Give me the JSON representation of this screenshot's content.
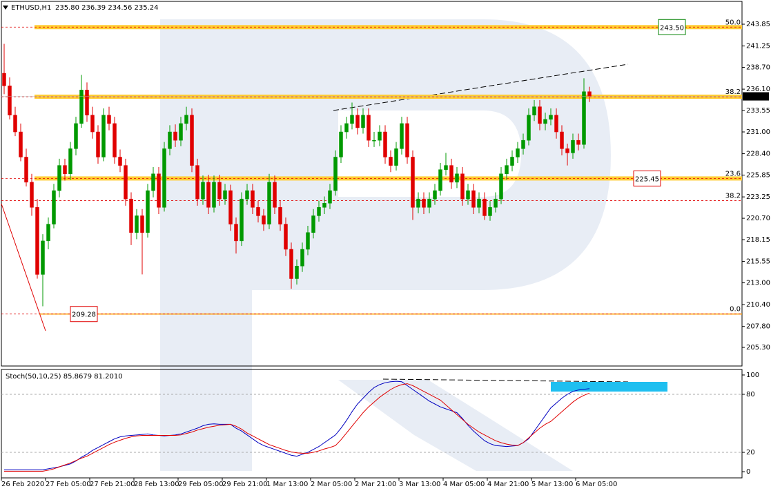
{
  "chart_data": [
    {
      "type": "candlestick",
      "symbol": "ETHUSD,H1",
      "quote": "235.80 236.39 234.56 235.24",
      "up_color": "#009900",
      "down_color": "#e00000",
      "categories": [
        "26 Feb 2020",
        null,
        null,
        null,
        null,
        null,
        null,
        null,
        "27 Feb 05:00",
        null,
        null,
        null,
        null,
        null,
        null,
        null,
        "27 Feb 21:00",
        null,
        null,
        null,
        null,
        null,
        null,
        null,
        "28 Feb 13:00",
        null,
        null,
        null,
        null,
        null,
        null,
        null,
        "29 Feb 05:00",
        null,
        null,
        null,
        null,
        null,
        null,
        null,
        "29 Feb 21:00",
        null,
        null,
        null,
        null,
        null,
        null,
        null,
        "1 Mar 13:00",
        null,
        null,
        null,
        null,
        null,
        null,
        null,
        "2 Mar 05:00",
        null,
        null,
        null,
        null,
        null,
        null,
        null,
        "2 Mar 21:00",
        null,
        null,
        null,
        null,
        null,
        null,
        null,
        "3 Mar 13:00",
        null,
        null,
        null,
        null,
        null,
        null,
        null,
        "4 Mar 05:00",
        null,
        null,
        null,
        null,
        null,
        null,
        null,
        "4 Mar 21:00",
        null,
        null,
        null,
        null,
        null,
        null,
        null,
        "5 Mar 13:00",
        null,
        null,
        null,
        null,
        null,
        null,
        null,
        "6 Mar 05:00",
        null,
        null
      ],
      "ohlc": [
        [
          238,
          241.5,
          235.5,
          236.5
        ],
        [
          236.5,
          237.5,
          232.5,
          233
        ],
        [
          233,
          234,
          230.5,
          231
        ],
        [
          231,
          232,
          227.5,
          228
        ],
        [
          228,
          229,
          224.5,
          225
        ],
        [
          225,
          226,
          221,
          222
        ],
        [
          222,
          223,
          213.5,
          214
        ],
        [
          214,
          218.8,
          210.2,
          218
        ],
        [
          218,
          220.8,
          217,
          220
        ],
        [
          220,
          224.8,
          219.5,
          224
        ],
        [
          224,
          227.8,
          223.2,
          227
        ],
        [
          227,
          227.8,
          225.2,
          226
        ],
        [
          226,
          229.8,
          225.3,
          229
        ],
        [
          229,
          232.8,
          228.2,
          232
        ],
        [
          232,
          237.8,
          231.5,
          236
        ],
        [
          236,
          236.9,
          232.2,
          233
        ],
        [
          233,
          234,
          230.2,
          231
        ],
        [
          231,
          231.8,
          227.2,
          228
        ],
        [
          228,
          233.8,
          227.5,
          233
        ],
        [
          233,
          234,
          231.2,
          232
        ],
        [
          232,
          232.8,
          227.2,
          228
        ],
        [
          228,
          228.9,
          226.2,
          227
        ],
        [
          227,
          227.8,
          222.2,
          223
        ],
        [
          223,
          223.8,
          217.5,
          219
        ],
        [
          219,
          221.8,
          218.2,
          221
        ],
        [
          221,
          221.8,
          214,
          219
        ],
        [
          219,
          224.8,
          218.4,
          224
        ],
        [
          224,
          226.8,
          223.2,
          226
        ],
        [
          226,
          226.8,
          221.2,
          222
        ],
        [
          222,
          229.8,
          221.5,
          229
        ],
        [
          229,
          231.8,
          228.2,
          231
        ],
        [
          231,
          231.9,
          229.2,
          230
        ],
        [
          230,
          232.8,
          229.3,
          232
        ],
        [
          232,
          234,
          231.2,
          233
        ],
        [
          233,
          233.8,
          226.2,
          227
        ],
        [
          227,
          227.8,
          222.2,
          223
        ],
        [
          223,
          225.8,
          222.3,
          225
        ],
        [
          225,
          225.9,
          221.2,
          222
        ],
        [
          222,
          225.8,
          221.4,
          225
        ],
        [
          225,
          225.9,
          222.2,
          223
        ],
        [
          223,
          224.8,
          222.3,
          224
        ],
        [
          224,
          224.7,
          219.2,
          220
        ],
        [
          220,
          220.8,
          216.5,
          218
        ],
        [
          218,
          223.8,
          217.4,
          223
        ],
        [
          223,
          224.8,
          222.3,
          224
        ],
        [
          224,
          224.8,
          221.2,
          222
        ],
        [
          222,
          222.8,
          220.2,
          221
        ],
        [
          221,
          221.8,
          219.2,
          220
        ],
        [
          220,
          226,
          219.4,
          225
        ],
        [
          225,
          225.8,
          221.2,
          222
        ],
        [
          222,
          222.8,
          219.2,
          220
        ],
        [
          220,
          220.8,
          216.2,
          217
        ],
        [
          217,
          217.8,
          212.3,
          213.5
        ],
        [
          213.5,
          215.8,
          212.8,
          215
        ],
        [
          215,
          217.8,
          214.3,
          217
        ],
        [
          217,
          219.8,
          216.3,
          219
        ],
        [
          219,
          221.8,
          218.3,
          221
        ],
        [
          221,
          222.8,
          220.3,
          222
        ],
        [
          222,
          223.3,
          221.2,
          222.5
        ],
        [
          222.5,
          224.8,
          221.8,
          224
        ],
        [
          224,
          228.8,
          223.4,
          228
        ],
        [
          228,
          231.8,
          227.3,
          231
        ],
        [
          231,
          232.8,
          230.2,
          232
        ],
        [
          232,
          234.5,
          231.3,
          233
        ],
        [
          233,
          233.8,
          230.7,
          231.5
        ],
        [
          231.5,
          233.8,
          230.8,
          233
        ],
        [
          233,
          233.8,
          229.2,
          230
        ],
        [
          230,
          231,
          229.2,
          230
        ],
        [
          230,
          231.8,
          229.3,
          231
        ],
        [
          231,
          231.8,
          227.2,
          228
        ],
        [
          228,
          228.8,
          226.2,
          227
        ],
        [
          227,
          229.8,
          226.4,
          229
        ],
        [
          229,
          232.8,
          228.3,
          232
        ],
        [
          232,
          232.8,
          227.2,
          228
        ],
        [
          228,
          228.8,
          220.5,
          222
        ],
        [
          222,
          223.8,
          221.3,
          223
        ],
        [
          223,
          223.8,
          221.2,
          222
        ],
        [
          222,
          223.8,
          221.3,
          223
        ],
        [
          223,
          224.8,
          222.3,
          224
        ],
        [
          224,
          227.3,
          223.4,
          226.5
        ],
        [
          226.5,
          228.5,
          225.8,
          227
        ],
        [
          227,
          227.8,
          224.2,
          225
        ],
        [
          225,
          226.8,
          224.3,
          226
        ],
        [
          226,
          226.8,
          222.2,
          223
        ],
        [
          223,
          224.8,
          222.3,
          224
        ],
        [
          224,
          224.8,
          221.2,
          222
        ],
        [
          222,
          223.8,
          221.3,
          223
        ],
        [
          223,
          223.8,
          220.5,
          221
        ],
        [
          221,
          222.8,
          220.4,
          222
        ],
        [
          222,
          223.8,
          221.4,
          223
        ],
        [
          223,
          226.8,
          222.4,
          226
        ],
        [
          226,
          227.8,
          225.3,
          227
        ],
        [
          227,
          228.8,
          226.3,
          228
        ],
        [
          228,
          229.8,
          227.3,
          229
        ],
        [
          229,
          230.8,
          228.3,
          230
        ],
        [
          230,
          233.8,
          229.4,
          233
        ],
        [
          233,
          234.8,
          232.3,
          234
        ],
        [
          234,
          234.8,
          231.2,
          232
        ],
        [
          232,
          233.3,
          231.2,
          232.5
        ],
        [
          232.5,
          233.8,
          231.8,
          233
        ],
        [
          233,
          233.8,
          230.2,
          231
        ],
        [
          231,
          231.8,
          228.2,
          229
        ],
        [
          229,
          229.6,
          227,
          228.5
        ],
        [
          228.5,
          230.8,
          227.8,
          230
        ],
        [
          230,
          230.8,
          228.8,
          229.5
        ],
        [
          229.5,
          237.4,
          229,
          235.8
        ],
        [
          235.8,
          236.39,
          234.56,
          235.24
        ]
      ],
      "ylim": [
        203.08,
        246.57
      ],
      "yticks": [
        {
          "value": 205.3,
          "label": "205.30"
        },
        {
          "value": 207.8,
          "label": "207.80"
        },
        {
          "value": 210.4,
          "label": "210.40"
        },
        {
          "value": 213,
          "label": "213.00"
        },
        215.55,
        218.15,
        {
          "value": 220.7,
          "label": "220.70"
        },
        223.25,
        225.85,
        {
          "value": 228.4,
          "label": "228.40"
        },
        {
          "value": 231,
          "label": "231.00"
        },
        233.55,
        {
          "value": 236.1,
          "label": "236.10"
        },
        {
          "value": 238.7,
          "label": "238.70"
        },
        241.25,
        243.85
      ],
      "last_price": 235.24,
      "levels": [
        {
          "value": 243.5,
          "fib": "50.0",
          "style": "band",
          "label": "243.50",
          "label_color": "#008000",
          "label_anchor": "right"
        },
        {
          "value": 235.2,
          "fib": "38.2",
          "style": "band"
        },
        {
          "value": 225.45,
          "fib": "23.6",
          "style": "band",
          "label": "225.45",
          "label_color": "#e00000",
          "label_anchor": "right"
        },
        {
          "value": 222.8,
          "fib": "38.2",
          "style": "dashed"
        },
        {
          "value": 209.28,
          "fib": "0.0",
          "style": "line",
          "label": "209.28",
          "label_color": "#e00000",
          "label_anchor": "left"
        }
      ]
    },
    {
      "type": "line",
      "title": "Stoch(50,10,25) 85.8679 81.2010",
      "ylim": [
        -6.4,
        105.7
      ],
      "yticks": [
        0,
        20,
        80,
        100
      ],
      "levels": [
        20,
        80
      ],
      "series": [
        {
          "color": "#0000c0",
          "values": [
            2,
            2,
            2,
            2,
            2,
            2,
            2,
            2,
            3,
            4,
            5,
            6.5,
            8,
            11,
            15,
            18,
            22,
            25,
            28,
            31,
            34,
            36,
            37,
            37.5,
            38,
            38.5,
            39,
            38,
            37.5,
            37,
            37.5,
            38,
            39,
            41,
            43,
            45,
            47.5,
            49,
            49.5,
            49,
            49,
            49,
            45,
            42,
            38,
            34,
            30,
            27,
            25,
            23,
            21,
            19,
            17,
            16,
            18,
            20,
            23,
            26,
            30,
            34,
            38,
            45,
            53,
            62,
            70,
            76,
            82,
            87,
            90,
            92,
            93,
            93.5,
            93,
            89,
            85,
            81,
            77,
            73,
            70,
            67,
            65,
            63,
            61,
            55,
            48,
            42,
            37,
            32,
            29,
            27,
            26.5,
            26,
            26.5,
            27,
            30,
            34,
            42,
            50,
            58,
            66,
            71,
            76,
            80,
            83,
            84.5,
            85.2,
            85.8679
          ]
        },
        {
          "color": "#e00000",
          "values": [
            0.5,
            0.5,
            0.5,
            0.5,
            0.5,
            0.5,
            0.5,
            0.5,
            1.5,
            3,
            5,
            7,
            9,
            11.5,
            14,
            16,
            19,
            22,
            25,
            28,
            30.5,
            32.5,
            34.5,
            36,
            37,
            37.5,
            37.5,
            37.5,
            37.5,
            37.5,
            37.5,
            37.5,
            38,
            39.5,
            41,
            43,
            44.5,
            46,
            47,
            48,
            48.5,
            49,
            47,
            44,
            40,
            37,
            34,
            31,
            28,
            26,
            24,
            22,
            20.5,
            19.5,
            19,
            19,
            20,
            21.5,
            23.5,
            25,
            27,
            33,
            40,
            47,
            54,
            61,
            67,
            72,
            77,
            81,
            85,
            88,
            90,
            91,
            89,
            86,
            83,
            80,
            77,
            74,
            69,
            64,
            59,
            54,
            49,
            45,
            41,
            38,
            35,
            32,
            30,
            28.5,
            27.5,
            27,
            30,
            35,
            40,
            45,
            49,
            52,
            57,
            62,
            67,
            72,
            76,
            79,
            81.201
          ]
        }
      ]
    }
  ]
}
